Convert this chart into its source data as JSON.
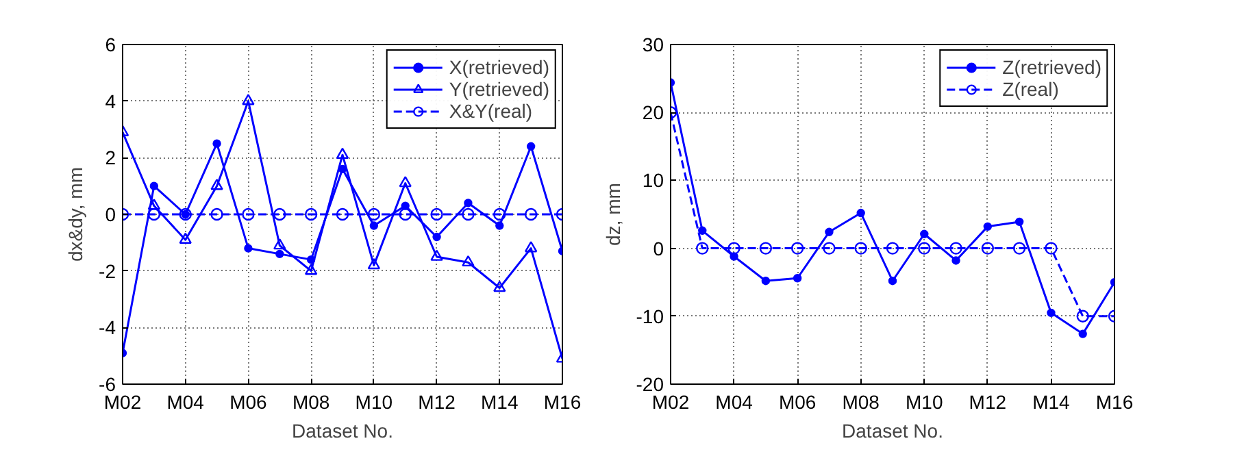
{
  "chart_data": [
    {
      "type": "line",
      "xlabel": "Dataset No.",
      "ylabel": "dx&dy, mm",
      "categories": [
        "M02",
        null,
        "M04",
        null,
        "M06",
        null,
        "M08",
        null,
        "M10",
        null,
        "M12",
        null,
        "M14",
        null,
        "M16"
      ],
      "series": [
        {
          "name": "X(retrieved)",
          "color": "#0000ff",
          "marker": "circle",
          "line_style": "solid",
          "values": [
            -4.9,
            1.0,
            0.0,
            2.5,
            -1.2,
            -1.4,
            -1.6,
            1.6,
            -0.4,
            0.3,
            -0.8,
            0.4,
            -0.4,
            2.4,
            -1.3
          ]
        },
        {
          "name": "Y(retrieved)",
          "color": "#0000ff",
          "marker": "triangle",
          "line_style": "solid",
          "values": [
            2.9,
            0.3,
            -0.9,
            1.0,
            4.0,
            -1.1,
            -2.0,
            2.1,
            -1.8,
            1.1,
            -1.5,
            -1.7,
            -2.6,
            -1.2,
            -5.1
          ]
        },
        {
          "name": "X&Y(real)",
          "color": "#0000ff",
          "marker": "circle",
          "line_style": "dashed",
          "values": [
            0,
            0,
            0,
            0,
            0,
            0,
            0,
            0,
            0,
            0,
            0,
            0,
            0,
            0,
            0
          ]
        }
      ],
      "ylim": [
        -6,
        6
      ],
      "yticks": [
        -6,
        -4,
        -2,
        0,
        2,
        4,
        6
      ],
      "grid": true,
      "legend": "top right"
    },
    {
      "type": "line",
      "xlabel": "Dataset No.",
      "ylabel": "dz, mm",
      "categories": [
        "M02",
        null,
        "M04",
        null,
        "M06",
        null,
        "M08",
        null,
        "M10",
        null,
        "M12",
        null,
        "M14",
        null,
        "M16"
      ],
      "series": [
        {
          "name": "Z(retrieved)",
          "color": "#0000ff",
          "marker": "circle",
          "line_style": "solid",
          "values": [
            24.4,
            2.6,
            -1.2,
            -4.8,
            -4.4,
            2.4,
            5.2,
            -4.8,
            2.1,
            -1.8,
            3.2,
            3.9,
            -9.5,
            -12.6,
            -5.0
          ]
        },
        {
          "name": "Z(real)",
          "color": "#0000ff",
          "marker": "circle",
          "line_style": "dashed",
          "values": [
            20,
            0,
            0,
            0,
            0,
            0,
            0,
            0,
            0,
            0,
            0,
            0,
            0,
            -10,
            -10
          ]
        }
      ],
      "ylim": [
        -20,
        30
      ],
      "yticks": [
        -20,
        -10,
        0,
        10,
        20,
        30
      ],
      "grid": true,
      "legend": "top right"
    }
  ]
}
